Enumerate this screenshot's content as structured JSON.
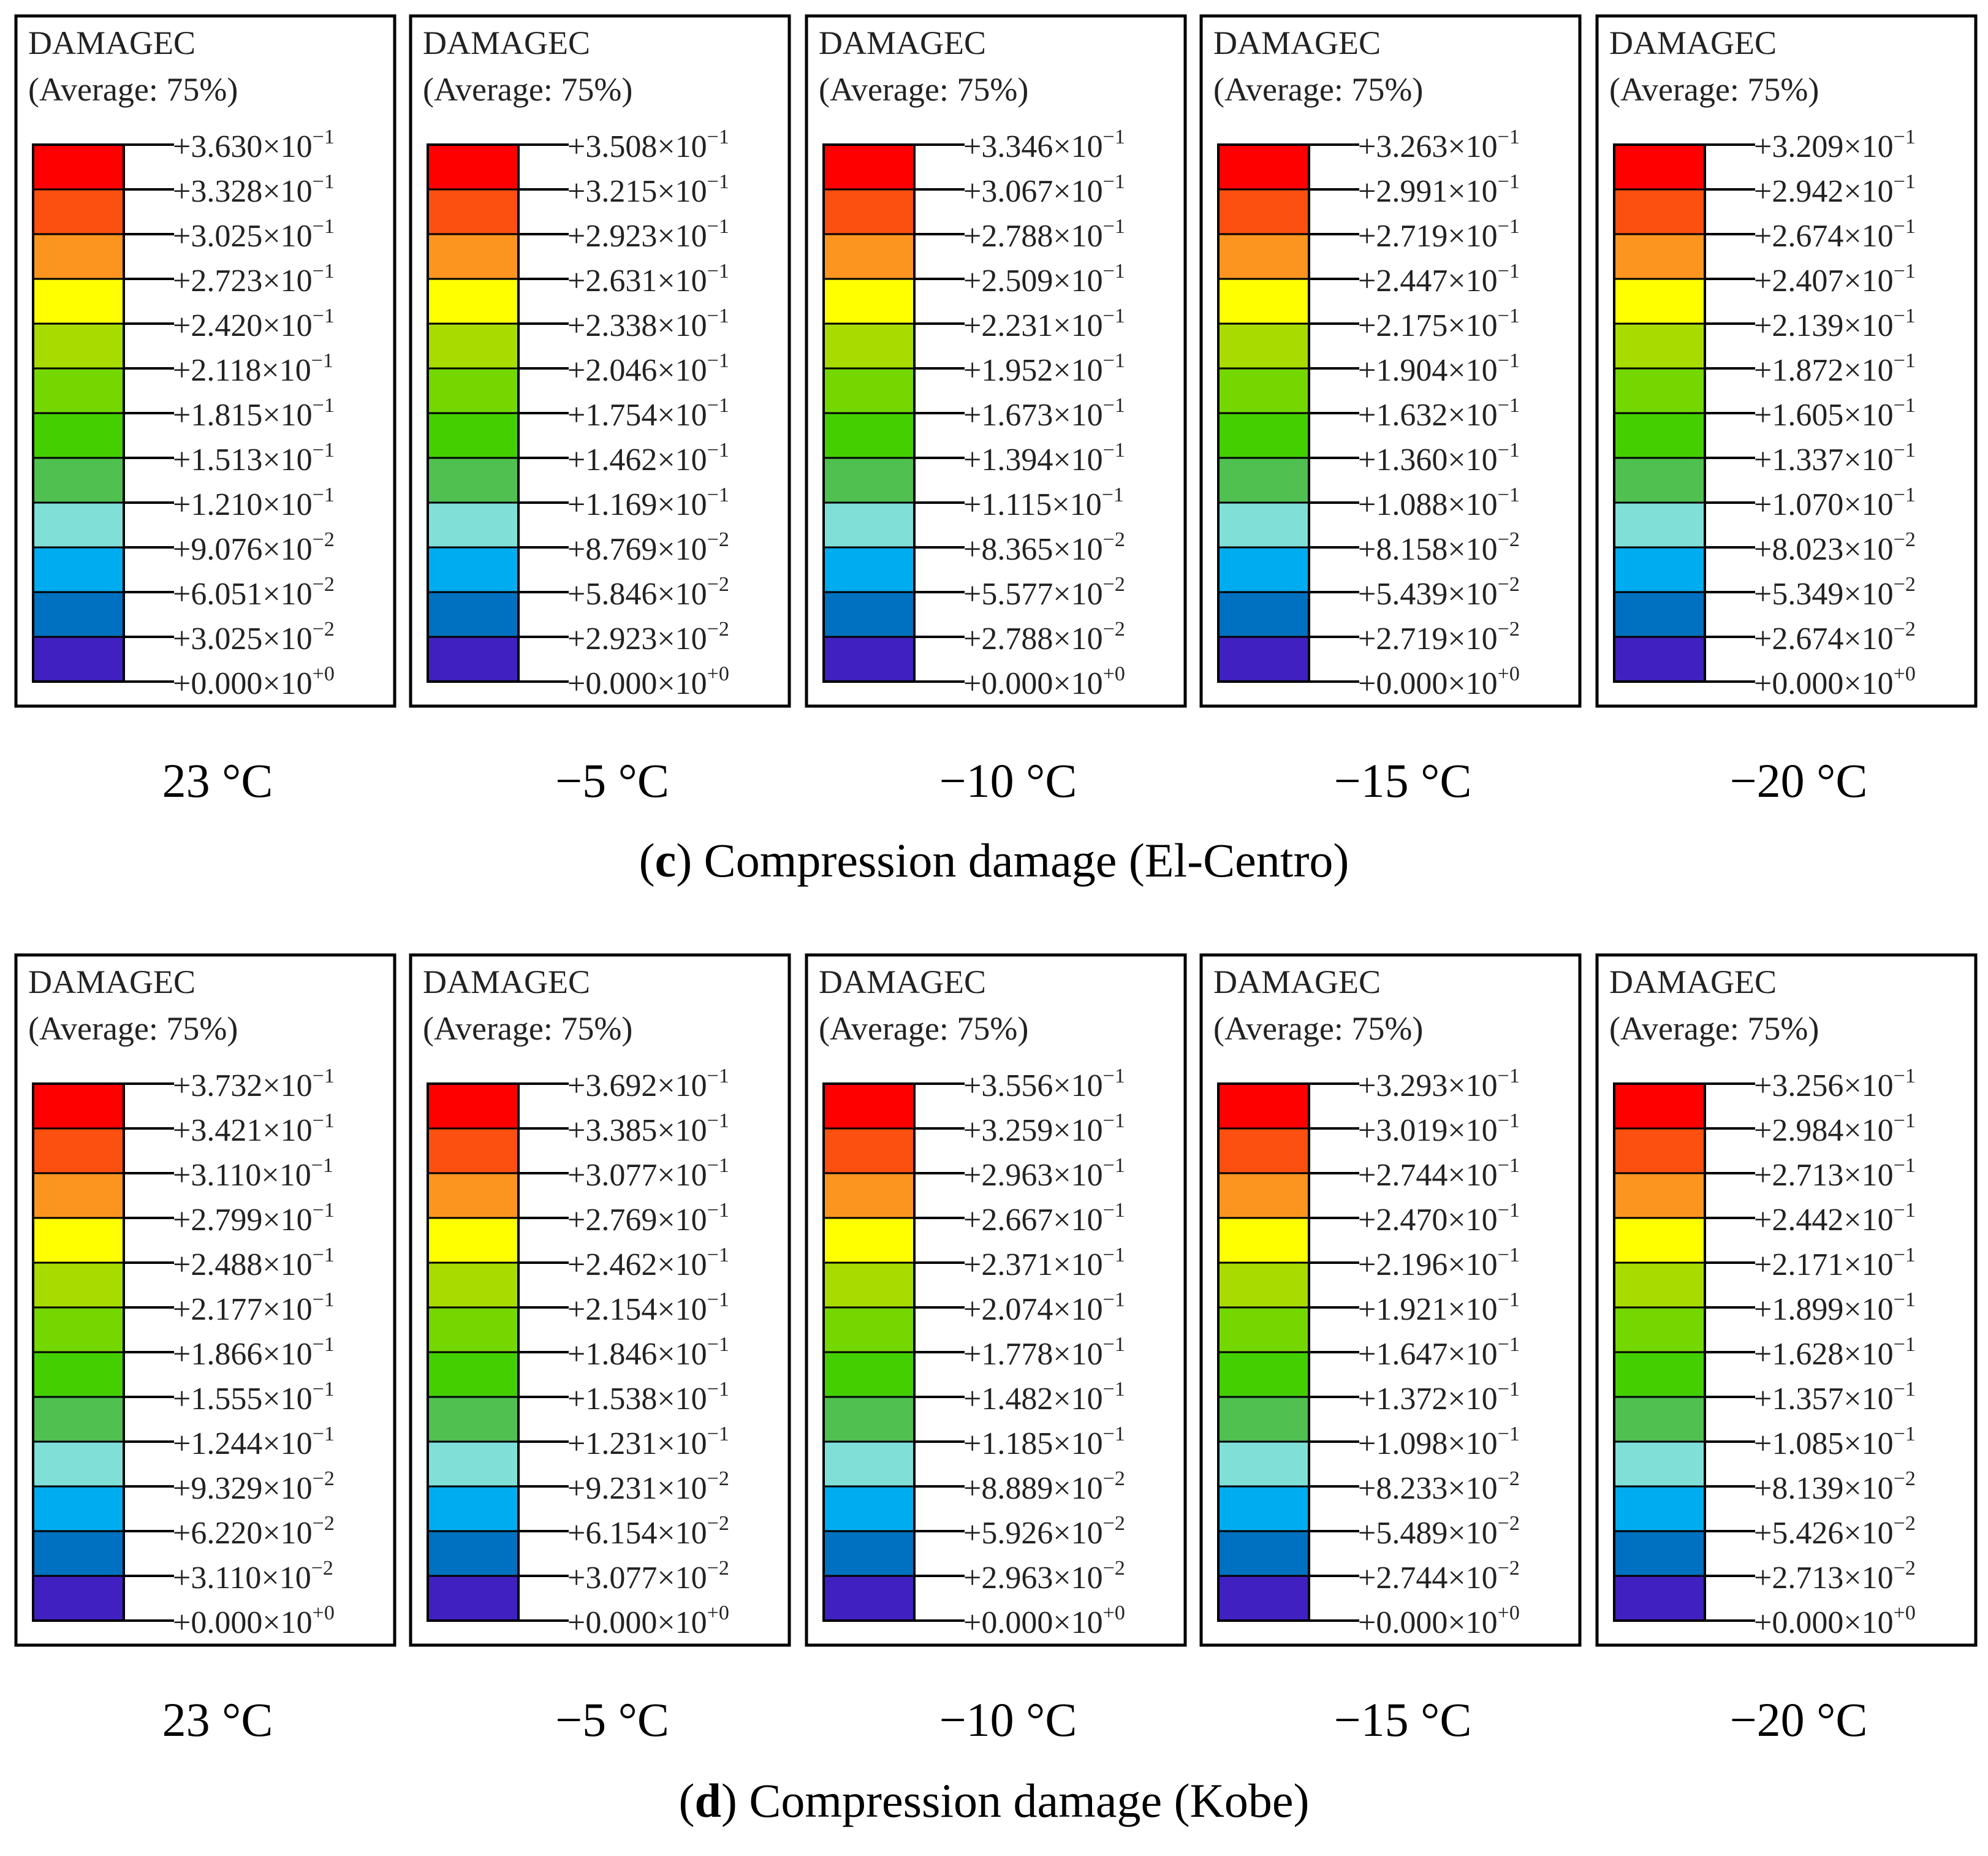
{
  "colors": [
    "#ff0000",
    "#fb5010",
    "#fb951f",
    "#ffff00",
    "#a8dc00",
    "#74d800",
    "#44d000",
    "#50c050",
    "#80e0d8",
    "#00acf0",
    "#0070c0",
    "#4020c0"
  ],
  "sections": [
    {
      "caption_letter": "c",
      "caption_text": ") Compression damage (El-Centro)",
      "panels": [
        {
          "title": "DAMAGEC",
          "subtitle": "(Average: 75%)",
          "temperature": "23 °C",
          "labels": [
            "+3.630",
            "+3.328",
            "+3.025",
            "+2.723",
            "+2.420",
            "+2.118",
            "+1.815",
            "+1.513",
            "+1.210",
            "+9.076",
            "+6.051",
            "+3.025",
            "+0.000"
          ],
          "exps": [
            "−1",
            "−1",
            "−1",
            "−1",
            "−1",
            "−1",
            "−1",
            "−1",
            "−1",
            "−2",
            "−2",
            "−2",
            "+0"
          ]
        },
        {
          "title": "DAMAGEC",
          "subtitle": "(Average: 75%)",
          "temperature": "−5 °C",
          "labels": [
            "+3.508",
            "+3.215",
            "+2.923",
            "+2.631",
            "+2.338",
            "+2.046",
            "+1.754",
            "+1.462",
            "+1.169",
            "+8.769",
            "+5.846",
            "+2.923",
            "+0.000"
          ],
          "exps": [
            "−1",
            "−1",
            "−1",
            "−1",
            "−1",
            "−1",
            "−1",
            "−1",
            "−1",
            "−2",
            "−2",
            "−2",
            "+0"
          ]
        },
        {
          "title": "DAMAGEC",
          "subtitle": "(Average: 75%)",
          "temperature": "−10 °C",
          "labels": [
            "+3.346",
            "+3.067",
            "+2.788",
            "+2.509",
            "+2.231",
            "+1.952",
            "+1.673",
            "+1.394",
            "+1.115",
            "+8.365",
            "+5.577",
            "+2.788",
            "+0.000"
          ],
          "exps": [
            "−1",
            "−1",
            "−1",
            "−1",
            "−1",
            "−1",
            "−1",
            "−1",
            "−1",
            "−2",
            "−2",
            "−2",
            "+0"
          ]
        },
        {
          "title": "DAMAGEC",
          "subtitle": "(Average: 75%)",
          "temperature": "−15 °C",
          "labels": [
            "+3.263",
            "+2.991",
            "+2.719",
            "+2.447",
            "+2.175",
            "+1.904",
            "+1.632",
            "+1.360",
            "+1.088",
            "+8.158",
            "+5.439",
            "+2.719",
            "+0.000"
          ],
          "exps": [
            "−1",
            "−1",
            "−1",
            "−1",
            "−1",
            "−1",
            "−1",
            "−1",
            "−1",
            "−2",
            "−2",
            "−2",
            "+0"
          ]
        },
        {
          "title": "DAMAGEC",
          "subtitle": "(Average: 75%)",
          "temperature": "−20 °C",
          "labels": [
            "+3.209",
            "+2.942",
            "+2.674",
            "+2.407",
            "+2.139",
            "+1.872",
            "+1.605",
            "+1.337",
            "+1.070",
            "+8.023",
            "+5.349",
            "+2.674",
            "+0.000"
          ],
          "exps": [
            "−1",
            "−1",
            "−1",
            "−1",
            "−1",
            "−1",
            "−1",
            "−1",
            "−1",
            "−2",
            "−2",
            "−2",
            "+0"
          ]
        }
      ]
    },
    {
      "caption_letter": "d",
      "caption_text": ") Compression damage (Kobe)",
      "panels": [
        {
          "title": "DAMAGEC",
          "subtitle": "(Average: 75%)",
          "temperature": "23 °C",
          "labels": [
            "+3.732",
            "+3.421",
            "+3.110",
            "+2.799",
            "+2.488",
            "+2.177",
            "+1.866",
            "+1.555",
            "+1.244",
            "+9.329",
            "+6.220",
            "+3.110",
            "+0.000"
          ],
          "exps": [
            "−1",
            "−1",
            "−1",
            "−1",
            "−1",
            "−1",
            "−1",
            "−1",
            "−1",
            "−2",
            "−2",
            "−2",
            "+0"
          ]
        },
        {
          "title": "DAMAGEC",
          "subtitle": "(Average: 75%)",
          "temperature": "−5 °C",
          "labels": [
            "+3.692",
            "+3.385",
            "+3.077",
            "+2.769",
            "+2.462",
            "+2.154",
            "+1.846",
            "+1.538",
            "+1.231",
            "+9.231",
            "+6.154",
            "+3.077",
            "+0.000"
          ],
          "exps": [
            "−1",
            "−1",
            "−1",
            "−1",
            "−1",
            "−1",
            "−1",
            "−1",
            "−1",
            "−2",
            "−2",
            "−2",
            "+0"
          ]
        },
        {
          "title": "DAMAGEC",
          "subtitle": "(Average: 75%)",
          "temperature": "−10 °C",
          "labels": [
            "+3.556",
            "+3.259",
            "+2.963",
            "+2.667",
            "+2.371",
            "+2.074",
            "+1.778",
            "+1.482",
            "+1.185",
            "+8.889",
            "+5.926",
            "+2.963",
            "+0.000"
          ],
          "exps": [
            "−1",
            "−1",
            "−1",
            "−1",
            "−1",
            "−1",
            "−1",
            "−1",
            "−1",
            "−2",
            "−2",
            "−2",
            "+0"
          ]
        },
        {
          "title": "DAMAGEC",
          "subtitle": "(Average: 75%)",
          "temperature": "−15 °C",
          "labels": [
            "+3.293",
            "+3.019",
            "+2.744",
            "+2.470",
            "+2.196",
            "+1.921",
            "+1.647",
            "+1.372",
            "+1.098",
            "+8.233",
            "+5.489",
            "+2.744",
            "+0.000"
          ],
          "exps": [
            "−1",
            "−1",
            "−1",
            "−1",
            "−1",
            "−1",
            "−1",
            "−1",
            "−1",
            "−2",
            "−2",
            "−2",
            "+0"
          ]
        },
        {
          "title": "DAMAGEC",
          "subtitle": "(Average: 75%)",
          "temperature": "−20 °C",
          "labels": [
            "+3.256",
            "+2.984",
            "+2.713",
            "+2.442",
            "+2.171",
            "+1.899",
            "+1.628",
            "+1.357",
            "+1.085",
            "+8.139",
            "+5.426",
            "+2.713",
            "+0.000"
          ],
          "exps": [
            "−1",
            "−1",
            "−1",
            "−1",
            "−1",
            "−1",
            "−1",
            "−1",
            "−1",
            "−2",
            "−2",
            "−2",
            "+0"
          ]
        }
      ]
    }
  ]
}
